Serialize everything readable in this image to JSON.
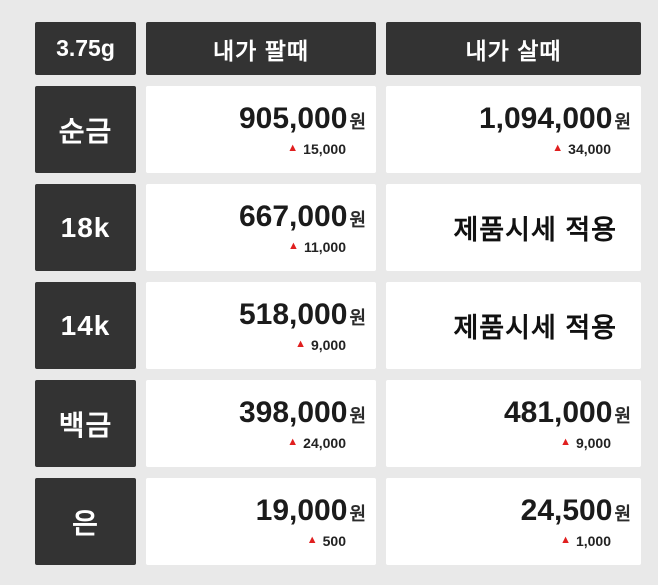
{
  "table": {
    "currency": "원",
    "header": {
      "unit": "3.75g",
      "sell": "내가 팔때",
      "buy": "내가 살때"
    },
    "rows": [
      {
        "label": "순금",
        "sell": {
          "price": "905,000",
          "change": "15,000"
        },
        "buy": {
          "price": "1,094,000",
          "change": "34,000"
        }
      },
      {
        "label": "18k",
        "sell": {
          "price": "667,000",
          "change": "11,000"
        },
        "buy": {
          "text": "제품시세 적용"
        }
      },
      {
        "label": "14k",
        "sell": {
          "price": "518,000",
          "change": "9,000"
        },
        "buy": {
          "text": "제품시세 적용"
        }
      },
      {
        "label": "백금",
        "sell": {
          "price": "398,000",
          "change": "24,000"
        },
        "buy": {
          "price": "481,000",
          "change": "9,000"
        }
      },
      {
        "label": "은",
        "sell": {
          "price": "19,000",
          "change": "500"
        },
        "buy": {
          "price": "24,500",
          "change": "1,000"
        }
      }
    ]
  },
  "icons": {
    "up_arrow": "▲"
  },
  "colors": {
    "dark_cell": "#333333",
    "background": "#e9e9e9",
    "cell_white": "#ffffff",
    "change_up": "#e01f1f"
  },
  "chart_data": {
    "type": "table",
    "title": "",
    "columns": [
      "3.75g",
      "내가 팔때",
      "내가 살때"
    ],
    "rows": [
      [
        "순금",
        "905,000원 ▲15,000",
        "1,094,000원 ▲34,000"
      ],
      [
        "18k",
        "667,000원 ▲11,000",
        "제품시세 적용"
      ],
      [
        "14k",
        "518,000원 ▲9,000",
        "제품시세 적용"
      ],
      [
        "백금",
        "398,000원 ▲24,000",
        "481,000원 ▲9,000"
      ],
      [
        "은",
        "19,000원 ▲500",
        "24,500원 ▲1,000"
      ]
    ]
  }
}
